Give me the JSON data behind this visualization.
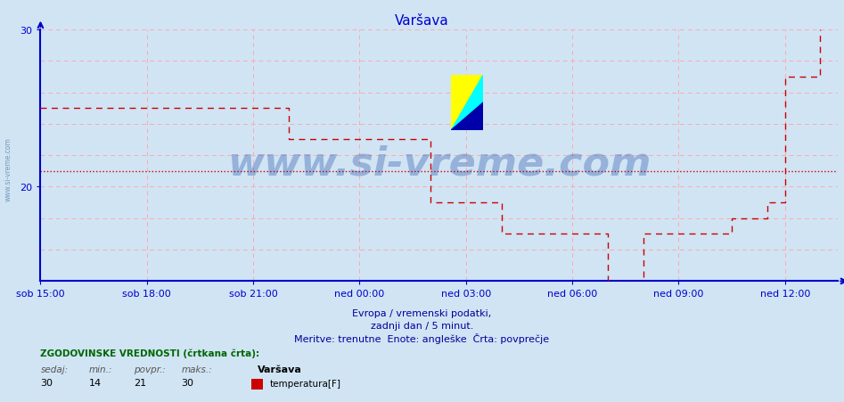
{
  "title": "Varšava",
  "title_color": "#0000cc",
  "bg_color": "#d0e4f4",
  "plot_bg_color": "#d0e4f4",
  "grid_color": "#ffaaaa",
  "axis_color": "#0000cc",
  "line_color": "#cc0000",
  "avg_line_color": "#cc0000",
  "avg_value": 21,
  "ylim_min": 14,
  "ylim_max": 30,
  "ytick_vals": [
    20,
    30
  ],
  "xtick_labels": [
    "sob 15:00",
    "sob 18:00",
    "sob 21:00",
    "ned 00:00",
    "ned 03:00",
    "ned 06:00",
    "ned 09:00",
    "ned 12:00"
  ],
  "xtick_positions": [
    0,
    3,
    6,
    9,
    12,
    15,
    18,
    21
  ],
  "total_hours": 22.5,
  "watermark_text": "www.si-vreme.com",
  "watermark_color": "#003399",
  "side_watermark": "www.si-vreme.com",
  "footnote1": "Evropa / vremenski podatki,",
  "footnote2": "zadnji dan / 5 minut.",
  "footnote3": "Meritve: trenutne  Enote: angleške  Črta: povprečje",
  "footnote_color": "#000099",
  "legend_title": "ZGODOVINSKE VREDNOSTI (črtkana črta):",
  "legend_headers": [
    "sedaj:",
    "min.:",
    "povpr.:",
    "maks.:"
  ],
  "legend_vals": [
    "30",
    "14",
    "21",
    "30"
  ],
  "legend_name": "Varšava",
  "legend_series": "temperatura[F]",
  "data_x": [
    0.0,
    0.5,
    1.0,
    1.5,
    2.0,
    2.5,
    3.0,
    3.5,
    4.0,
    4.5,
    5.0,
    5.5,
    6.0,
    6.5,
    7.0,
    7.5,
    8.0,
    8.5,
    9.0,
    9.5,
    10.0,
    10.5,
    11.0,
    11.5,
    12.0,
    12.5,
    13.0,
    13.5,
    14.0,
    14.5,
    15.0,
    15.5,
    16.0,
    16.5,
    17.0,
    17.5,
    18.0,
    18.5,
    19.0,
    19.5,
    20.0,
    20.5,
    21.0,
    21.5,
    22.0
  ],
  "data_y": [
    25,
    25,
    25,
    25,
    25,
    25,
    25,
    25,
    25,
    25,
    25,
    25,
    25,
    25,
    23,
    23,
    23,
    23,
    23,
    23,
    23,
    23,
    19,
    19,
    19,
    19,
    17,
    17,
    17,
    17,
    17,
    17,
    14,
    14,
    17,
    17,
    17,
    17,
    17,
    18,
    18,
    19,
    27,
    27,
    30
  ]
}
